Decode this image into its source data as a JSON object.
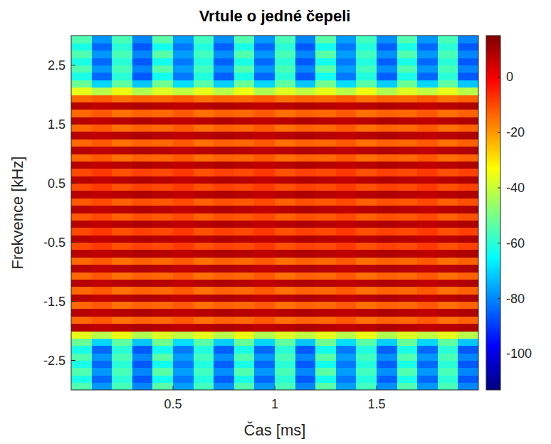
{
  "chart_data": {
    "type": "heatmap",
    "title": "Vrtule o jedné čepeli",
    "x_label": "Čas [ms]",
    "y_label": "Frekvence [kHz]",
    "xlim": [
      0,
      2
    ],
    "ylim": [
      -3,
      3
    ],
    "xticks": [
      0.5,
      1,
      1.5
    ],
    "yticks": [
      -2.5,
      -1.5,
      -0.5,
      0.5,
      1.5,
      2.5
    ],
    "colorbar": {
      "lim": [
        -113,
        15
      ],
      "ticks": [
        -100,
        -80,
        -60,
        -40,
        -20,
        0
      ]
    },
    "x_edges": [
      0,
      0.1,
      0.2,
      0.3,
      0.4,
      0.5,
      0.6,
      0.7,
      0.8,
      0.9,
      1,
      1.1,
      1.2,
      1.3,
      1.4,
      1.5,
      1.6,
      1.7,
      1.8,
      1.9,
      2
    ],
    "y_edges": [
      -3,
      -2.875,
      -2.75,
      -2.625,
      -2.5,
      -2.375,
      -2.25,
      -2.125,
      -2,
      -1.875,
      -1.75,
      -1.625,
      -1.5,
      -1.375,
      -1.25,
      -1.125,
      -1,
      -0.875,
      -0.75,
      -0.625,
      -0.5,
      -0.375,
      -0.25,
      -0.125,
      0,
      0.125,
      0.25,
      0.375,
      0.5,
      0.625,
      0.75,
      0.875,
      1,
      1.125,
      1.25,
      1.375,
      1.5,
      1.625,
      1.75,
      1.875,
      2,
      2.125,
      2.25,
      2.375,
      2.5,
      2.625,
      2.75,
      2.875,
      3
    ],
    "cells": [
      [
        -55,
        -78,
        -56,
        -80,
        -54,
        -77,
        -57,
        -79,
        -55,
        -78,
        -56,
        -80,
        -54,
        -77,
        -57,
        -79,
        -55,
        -78,
        -56,
        -80
      ],
      [
        -62,
        -84,
        -60,
        -86,
        -63,
        -82,
        -61,
        -85,
        -62,
        -84,
        -60,
        -86,
        -63,
        -82,
        -61,
        -85,
        -62,
        -84,
        -60,
        -86
      ],
      [
        -55,
        -78,
        -56,
        -80,
        -54,
        -77,
        -57,
        -79,
        -55,
        -78,
        -56,
        -80,
        -54,
        -77,
        -57,
        -79,
        -55,
        -78,
        -56,
        -80
      ],
      [
        -62,
        -84,
        -60,
        -86,
        -63,
        -82,
        -61,
        -85,
        -62,
        -84,
        -60,
        -86,
        -63,
        -82,
        -61,
        -85,
        -62,
        -84,
        -60,
        -86
      ],
      [
        -55,
        -78,
        -56,
        -80,
        -54,
        -77,
        -57,
        -79,
        -55,
        -78,
        -56,
        -80,
        -54,
        -77,
        -57,
        -79,
        -55,
        -78,
        -56,
        -80
      ],
      [
        -62,
        -84,
        -60,
        -86,
        -63,
        -82,
        -61,
        -85,
        -62,
        -84,
        -60,
        -86,
        -63,
        -82,
        -61,
        -85,
        -62,
        -84,
        -60,
        -86
      ],
      [
        -52,
        -70,
        -53,
        -72,
        -51,
        -69,
        -54,
        -71,
        -52,
        -70,
        -53,
        -72,
        -51,
        -69,
        -54,
        -71,
        -52,
        -70,
        -53,
        -72
      ],
      [
        -36,
        -42,
        -35,
        -43,
        -37,
        -41,
        -36,
        -42,
        -35,
        -43,
        -37,
        -41,
        -36,
        -42,
        -35,
        -43,
        -37,
        -41,
        -36,
        -42
      ],
      [
        8,
        7,
        8,
        9,
        8,
        7,
        8,
        9,
        8,
        7,
        8,
        9,
        8,
        7,
        8,
        9,
        8,
        7,
        8,
        9
      ],
      [
        -14,
        -12,
        -15,
        -13,
        -14,
        -12,
        -15,
        -13,
        -14,
        -12,
        -15,
        -13,
        -14,
        -12,
        -15,
        -13,
        -14,
        -12,
        -15,
        -13
      ],
      [
        8,
        7,
        8,
        9,
        8,
        7,
        8,
        9,
        8,
        7,
        8,
        9,
        8,
        7,
        8,
        9,
        8,
        7,
        8,
        9
      ],
      [
        -14,
        -12,
        -15,
        -13,
        -14,
        -12,
        -15,
        -13,
        -14,
        -12,
        -15,
        -13,
        -14,
        -12,
        -15,
        -13,
        -14,
        -12,
        -15,
        -13
      ],
      [
        8,
        7,
        8,
        9,
        8,
        7,
        8,
        9,
        8,
        7,
        8,
        9,
        8,
        7,
        8,
        9,
        8,
        7,
        8,
        9
      ],
      [
        -14,
        -12,
        -15,
        -13,
        -14,
        -12,
        -15,
        -13,
        -14,
        -12,
        -15,
        -13,
        -14,
        -12,
        -15,
        -13,
        -14,
        -12,
        -15,
        -13
      ],
      [
        8,
        7,
        8,
        9,
        8,
        7,
        8,
        9,
        8,
        7,
        8,
        9,
        8,
        7,
        8,
        9,
        8,
        7,
        8,
        9
      ],
      [
        -14,
        -12,
        -15,
        -13,
        -14,
        -12,
        -15,
        -13,
        -14,
        -12,
        -15,
        -13,
        -14,
        -12,
        -15,
        -13,
        -14,
        -12,
        -15,
        -13
      ],
      [
        8,
        7,
        8,
        9,
        8,
        7,
        8,
        9,
        8,
        7,
        8,
        9,
        8,
        7,
        8,
        9,
        8,
        7,
        8,
        9
      ],
      [
        -14,
        -12,
        -15,
        -13,
        -14,
        -12,
        -15,
        -13,
        -14,
        -12,
        -15,
        -13,
        -14,
        -12,
        -15,
        -13,
        -14,
        -12,
        -15,
        -13
      ],
      [
        8,
        7,
        8,
        9,
        8,
        7,
        8,
        9,
        8,
        7,
        8,
        9,
        8,
        7,
        8,
        9,
        8,
        7,
        8,
        9
      ],
      [
        -10,
        -8,
        -11,
        -9,
        -10,
        -8,
        -11,
        -9,
        -10,
        -8,
        -11,
        -9,
        -10,
        -8,
        -11,
        -9,
        -10,
        -8,
        -11,
        -9
      ],
      [
        8,
        7,
        8,
        9,
        8,
        7,
        8,
        9,
        8,
        7,
        8,
        9,
        8,
        7,
        8,
        9,
        8,
        7,
        8,
        9
      ],
      [
        -10,
        -8,
        -11,
        -9,
        -10,
        -8,
        -11,
        -9,
        -10,
        -8,
        -11,
        -9,
        -10,
        -8,
        -11,
        -9,
        -10,
        -8,
        -11,
        -9
      ],
      [
        8,
        7,
        8,
        9,
        8,
        7,
        8,
        9,
        8,
        7,
        8,
        9,
        8,
        7,
        8,
        9,
        8,
        7,
        8,
        9
      ],
      [
        -12,
        -10,
        -13,
        -11,
        -12,
        -10,
        -13,
        -11,
        -12,
        -10,
        -13,
        -11,
        -12,
        -10,
        -13,
        -11,
        -12,
        -10,
        -13,
        -11
      ],
      [
        8,
        7,
        8,
        9,
        8,
        7,
        8,
        9,
        8,
        7,
        8,
        9,
        8,
        7,
        8,
        9,
        8,
        7,
        8,
        9
      ],
      [
        -12,
        -10,
        -13,
        -11,
        -12,
        -10,
        -13,
        -11,
        -12,
        -10,
        -13,
        -11,
        -12,
        -10,
        -13,
        -11,
        -12,
        -10,
        -13,
        -11
      ],
      [
        8,
        7,
        8,
        9,
        8,
        7,
        8,
        9,
        8,
        7,
        8,
        9,
        8,
        7,
        8,
        9,
        8,
        7,
        8,
        9
      ],
      [
        -10,
        -8,
        -11,
        -9,
        -10,
        -8,
        -11,
        -9,
        -10,
        -8,
        -11,
        -9,
        -10,
        -8,
        -11,
        -9,
        -10,
        -8,
        -11,
        -9
      ],
      [
        8,
        7,
        8,
        9,
        8,
        7,
        8,
        9,
        8,
        7,
        8,
        9,
        8,
        7,
        8,
        9,
        8,
        7,
        8,
        9
      ],
      [
        -10,
        -8,
        -11,
        -9,
        -10,
        -8,
        -11,
        -9,
        -10,
        -8,
        -11,
        -9,
        -10,
        -8,
        -11,
        -9,
        -10,
        -8,
        -11,
        -9
      ],
      [
        8,
        7,
        8,
        9,
        8,
        7,
        8,
        9,
        8,
        7,
        8,
        9,
        8,
        7,
        8,
        9,
        8,
        7,
        8,
        9
      ],
      [
        -14,
        -12,
        -15,
        -13,
        -14,
        -12,
        -15,
        -13,
        -14,
        -12,
        -15,
        -13,
        -14,
        -12,
        -15,
        -13,
        -14,
        -12,
        -15,
        -13
      ],
      [
        8,
        7,
        8,
        9,
        8,
        7,
        8,
        9,
        8,
        7,
        8,
        9,
        8,
        7,
        8,
        9,
        8,
        7,
        8,
        9
      ],
      [
        -14,
        -12,
        -15,
        -13,
        -14,
        -12,
        -15,
        -13,
        -14,
        -12,
        -15,
        -13,
        -14,
        -12,
        -15,
        -13,
        -14,
        -12,
        -15,
        -13
      ],
      [
        8,
        7,
        8,
        9,
        8,
        7,
        8,
        9,
        8,
        7,
        8,
        9,
        8,
        7,
        8,
        9,
        8,
        7,
        8,
        9
      ],
      [
        -14,
        -12,
        -15,
        -13,
        -14,
        -12,
        -15,
        -13,
        -14,
        -12,
        -15,
        -13,
        -14,
        -12,
        -15,
        -13,
        -14,
        -12,
        -15,
        -13
      ],
      [
        8,
        7,
        8,
        9,
        8,
        7,
        8,
        9,
        8,
        7,
        8,
        9,
        8,
        7,
        8,
        9,
        8,
        7,
        8,
        9
      ],
      [
        -14,
        -12,
        -15,
        -13,
        -14,
        -12,
        -15,
        -13,
        -14,
        -12,
        -15,
        -13,
        -14,
        -12,
        -15,
        -13,
        -14,
        -12,
        -15,
        -13
      ],
      [
        8,
        7,
        8,
        9,
        8,
        7,
        8,
        9,
        8,
        7,
        8,
        9,
        8,
        7,
        8,
        9,
        8,
        7,
        8,
        9
      ],
      [
        -14,
        -12,
        -15,
        -13,
        -14,
        -12,
        -15,
        -13,
        -14,
        -12,
        -15,
        -13,
        -14,
        -12,
        -15,
        -13,
        -14,
        -12,
        -15,
        -13
      ],
      [
        -36,
        -42,
        -35,
        -43,
        -37,
        -41,
        -36,
        -42,
        -35,
        -43,
        -37,
        -41,
        -36,
        -42,
        -35,
        -43,
        -37,
        -41,
        -36,
        -42
      ],
      [
        -52,
        -70,
        -53,
        -72,
        -51,
        -69,
        -54,
        -71,
        -52,
        -70,
        -53,
        -72,
        -51,
        -69,
        -54,
        -71,
        -52,
        -70,
        -53,
        -72
      ],
      [
        -62,
        -84,
        -60,
        -86,
        -63,
        -82,
        -61,
        -85,
        -62,
        -84,
        -60,
        -86,
        -63,
        -82,
        -61,
        -85,
        -62,
        -84,
        -60,
        -86
      ],
      [
        -55,
        -78,
        -56,
        -80,
        -54,
        -77,
        -57,
        -79,
        -55,
        -78,
        -56,
        -80,
        -54,
        -77,
        -57,
        -79,
        -55,
        -78,
        -56,
        -80
      ],
      [
        -62,
        -84,
        -60,
        -86,
        -63,
        -82,
        -61,
        -85,
        -62,
        -84,
        -60,
        -86,
        -63,
        -82,
        -61,
        -85,
        -62,
        -84,
        -60,
        -86
      ],
      [
        -55,
        -78,
        -56,
        -80,
        -54,
        -77,
        -57,
        -79,
        -55,
        -78,
        -56,
        -80,
        -54,
        -77,
        -57,
        -79,
        -55,
        -78,
        -56,
        -80
      ],
      [
        -62,
        -84,
        -60,
        -86,
        -63,
        -82,
        -61,
        -85,
        -62,
        -84,
        -60,
        -86,
        -63,
        -82,
        -61,
        -85,
        -62,
        -84,
        -60,
        -86
      ],
      [
        -55,
        -78,
        -56,
        -80,
        -54,
        -77,
        -57,
        -79,
        -55,
        -78,
        -56,
        -80,
        -54,
        -77,
        -57,
        -79,
        -55,
        -78,
        -56,
        -80
      ]
    ]
  }
}
